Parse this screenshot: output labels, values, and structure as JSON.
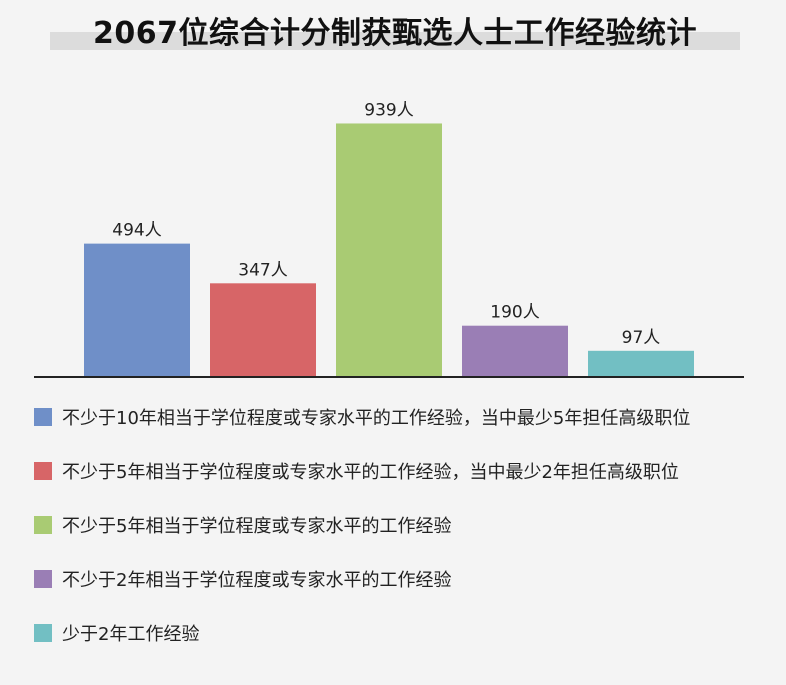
{
  "chart_data": {
    "type": "bar",
    "title": "2067位综合计分制获甄选人士工作经验统计",
    "categories": [
      "不少于10年相当于学位程度或专家水平的工作经验，当中最少5年担任高级职位",
      "不少于5年相当于学位程度或专家水平的工作经验，当中最少2年担任高级职位",
      "不少于5年相当于学位程度或专家水平的工作经验",
      "不少于2年相当于学位程度或专家水平的工作经验",
      "少于2年工作经验"
    ],
    "values": [
      494,
      347,
      939,
      190,
      97
    ],
    "data_labels": [
      "494人",
      "347人",
      "939人",
      "190人",
      "97人"
    ],
    "colors": [
      "#6f8fc8",
      "#d76567",
      "#a9cb73",
      "#9a7eb5",
      "#72bfc3"
    ],
    "ylim": [
      0,
      1000
    ],
    "grid": false,
    "legend": "bottom"
  }
}
